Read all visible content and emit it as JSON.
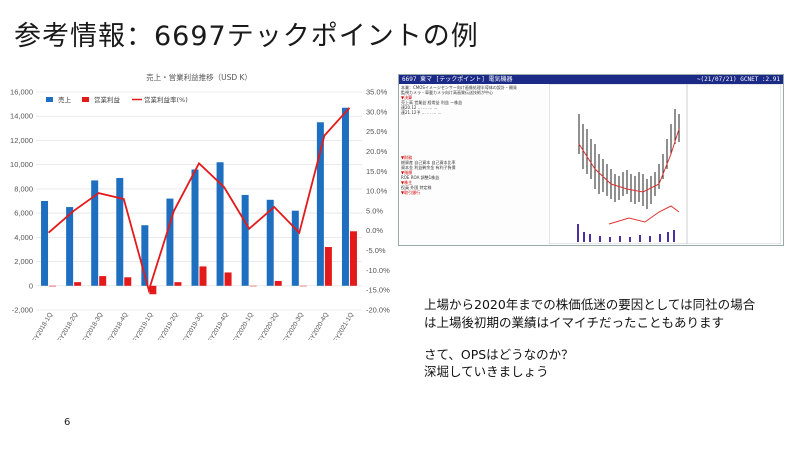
{
  "slide": {
    "title": "参考情報：6697テックポイントの例",
    "page_number": "6",
    "body_lines": [
      "上場から2020年までの株価低迷の要因としては同社の場合",
      "は上場後初期の業績はイマイチだったこともあります",
      "",
      "さて、OPSはどうなのか？",
      "深堀していきましょう"
    ]
  },
  "stock_panel": {
    "header_left": "6697  東マ  [テックポイント]  電気機器",
    "header_right": "~(21/07/21)  GCNET  :2.91",
    "lines_top": [
      "本業：CMOSイメージセンサー向け画像処理半導体の設計・開発",
      "監視カメラ・車載カメラ向け高画質伝送技術が中心",
      "▼決算",
      "    売上高   営業益   経常益   利益   一株益",
      "連20.12  …   …   …   …",
      "連21.12予 …   …   …   …"
    ],
    "lines_bottom": [
      "▼財務",
      "総資産  自己資本  自己資本比率",
      "資本金  利益剰余金  有利子負債",
      "▼指標",
      "ROE  ROA  調整1株益",
      "▼株主",
      "役員  外国  特定株",
      "▼取引銀行"
    ]
  },
  "chart_data": {
    "type": "bar",
    "title": "売上・営業利益推移（USD K）",
    "categories": [
      "FY2018-1Q",
      "FY2018-2Q",
      "FY2018-3Q",
      "FY2018-4Q",
      "FY2019-1Q",
      "FY2019-2Q",
      "FY2019-3Q",
      "FY2019-4Q",
      "FY2020-1Q",
      "FY2020-2Q",
      "FY2020-3Q",
      "FY2020-4Q",
      "FY2021-1Q"
    ],
    "series": [
      {
        "name": "売上",
        "type": "bar",
        "axis": "left",
        "values": [
          7000,
          6500,
          8700,
          8900,
          5000,
          7200,
          9600,
          10200,
          7500,
          7100,
          6200,
          13500,
          14700
        ]
      },
      {
        "name": "営業利益",
        "type": "bar",
        "axis": "left",
        "values": [
          -50,
          300,
          800,
          700,
          -700,
          300,
          1600,
          1100,
          0,
          400,
          0,
          3200,
          4500
        ]
      },
      {
        "name": "営業利益率(%)",
        "type": "line",
        "axis": "right",
        "values": [
          -0.5,
          5.0,
          9.5,
          8.0,
          -15.0,
          5.0,
          17.0,
          11.0,
          0.5,
          6.0,
          -0.5,
          24.0,
          31.0
        ]
      }
    ],
    "ylim_left": [
      -2000,
      16000
    ],
    "yticks_left": [
      "16,000",
      "14,000",
      "12,000",
      "10,000",
      "8,000",
      "6,000",
      "4,000",
      "2,000",
      "0",
      "-2,000"
    ],
    "ylim_right": [
      -20.0,
      35.0
    ],
    "yticks_right": [
      "35.0%",
      "30.0%",
      "25.0%",
      "20.0%",
      "15.0%",
      "10.0%",
      "5.0%",
      "0.0%",
      "-5.0%",
      "-10.0%",
      "-15.0%",
      "-20.0%"
    ],
    "colors": {
      "sales": "#1f6fc0",
      "profit": "#e41a1a",
      "margin": "#e41a1a"
    },
    "legend_position": "top-left",
    "grid": true
  }
}
